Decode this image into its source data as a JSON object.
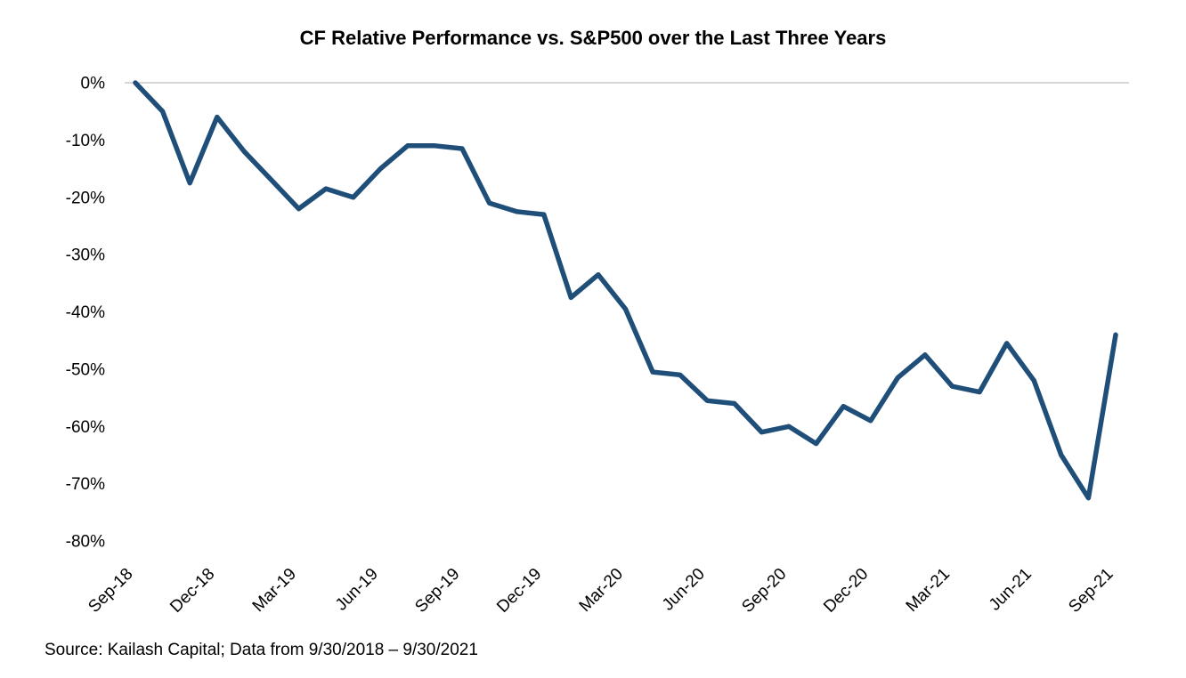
{
  "chart": {
    "title": "CF Relative Performance vs. S&P500 over the Last Three Years",
    "source": "Source: Kailash Capital; Data from 9/30/2018 – 9/30/2021",
    "line_color": "#1f4e79",
    "gridline_color": "#d6d6d6",
    "text_color": "#000000"
  },
  "chart_data": {
    "type": "line",
    "title": "CF Relative Performance vs. S&P500 over the Last Three Years",
    "x": [
      "Sep-18",
      "Oct-18",
      "Nov-18",
      "Dec-18",
      "Jan-19",
      "Feb-19",
      "Mar-19",
      "Apr-19",
      "May-19",
      "Jun-19",
      "Jul-19",
      "Aug-19",
      "Sep-19",
      "Oct-19",
      "Nov-19",
      "Dec-19",
      "Jan-20",
      "Feb-20",
      "Mar-20",
      "Apr-20",
      "May-20",
      "Jun-20",
      "Jul-20",
      "Aug-20",
      "Sep-20",
      "Oct-20",
      "Nov-20",
      "Dec-20",
      "Jan-21",
      "Feb-21",
      "Mar-21",
      "Apr-21",
      "May-21",
      "Jun-21",
      "Jul-21",
      "Aug-21",
      "Sep-21"
    ],
    "values": [
      0,
      -5,
      -17.5,
      -6,
      -12,
      -17,
      -22,
      -18.5,
      -20,
      -15,
      -11,
      -11,
      -11.5,
      -21,
      -22.5,
      -23,
      -37.5,
      -33.5,
      -39.5,
      -50.5,
      -51,
      -55.5,
      -56,
      -61,
      -60,
      -63,
      -56.5,
      -59,
      -51.5,
      -47.5,
      -53,
      -54,
      -45.5,
      -52,
      -65,
      -72.5,
      -44
    ],
    "series_name": "CF relative performance vs. S&P500",
    "y_ticks": [
      0,
      -10,
      -20,
      -30,
      -40,
      -50,
      -60,
      -70,
      -80
    ],
    "y_tick_suffix": "%",
    "ylim": [
      -80,
      0
    ],
    "x_tick_every": 3,
    "x_tick_labels": [
      "Sep-18",
      "Dec-18",
      "Mar-19",
      "Jun-19",
      "Sep-19",
      "Dec-19",
      "Mar-20",
      "Jun-20",
      "Sep-20",
      "Dec-20",
      "Mar-21",
      "Jun-21",
      "Sep-21"
    ],
    "xlabel": "",
    "ylabel": "",
    "legend": "none",
    "grid": "zero-line-only"
  }
}
